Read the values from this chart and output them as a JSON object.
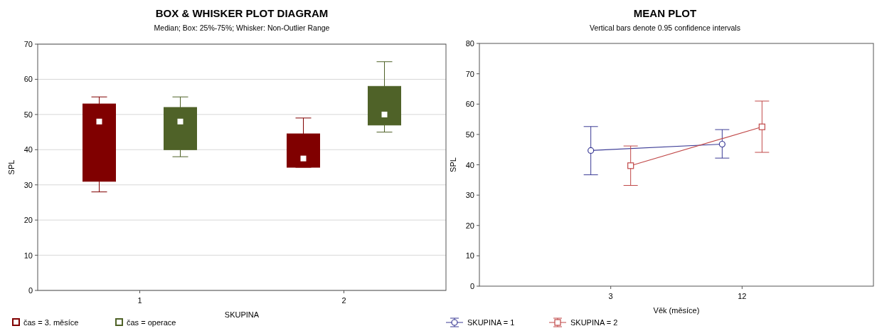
{
  "chart_data": [
    {
      "type": "box",
      "title": "BOX & WHISKER PLOT DIAGRAM",
      "subtitle": "Median; Box: 25%-75%; Whisker: Non-Outlier Range",
      "xlabel": "SKUPINA",
      "ylabel": "SPL",
      "categories": [
        "1",
        "2"
      ],
      "ylim": [
        0,
        70
      ],
      "yticks": [
        0,
        10,
        20,
        30,
        40,
        50,
        60,
        70
      ],
      "grid": "y",
      "legend": "bottom left",
      "series": [
        {
          "name": "čas = 3. měsíce",
          "color": "#800000",
          "boxes": [
            {
              "low": 28,
              "q1": 31,
              "median": 48,
              "q3": 53,
              "high": 55
            },
            {
              "low": 35,
              "q1": 35,
              "median": 37.5,
              "q3": 44.5,
              "high": 49
            }
          ]
        },
        {
          "name": "čas = operace",
          "color": "#4f6228",
          "boxes": [
            {
              "low": 38,
              "q1": 40,
              "median": 48,
              "q3": 52,
              "high": 55
            },
            {
              "low": 45,
              "q1": 47,
              "median": 50,
              "q3": 58,
              "high": 65
            }
          ]
        }
      ]
    },
    {
      "type": "line",
      "title": "MEAN PLOT",
      "subtitle": "Vertical bars denote 0.95 confidence intervals",
      "xlabel": "Věk (měsíce)",
      "ylabel": "SPL",
      "categories": [
        "3",
        "12"
      ],
      "ylim": [
        0,
        80
      ],
      "yticks": [
        0,
        10,
        20,
        30,
        40,
        50,
        60,
        70,
        80
      ],
      "legend": "bottom left",
      "series": [
        {
          "name": "SKUPINA = 1",
          "color": "#3c3c96",
          "marker": "circle",
          "values": [
            44.7,
            46.8
          ],
          "errors": [
            [
              36.7,
              52.6
            ],
            [
              42.2,
              51.6
            ]
          ]
        },
        {
          "name": "SKUPINA = 2",
          "color": "#c04848",
          "marker": "square",
          "values": [
            39.7,
            52.5
          ],
          "errors": [
            [
              33.2,
              46.2
            ],
            [
              44.1,
              61
            ]
          ]
        }
      ]
    }
  ]
}
